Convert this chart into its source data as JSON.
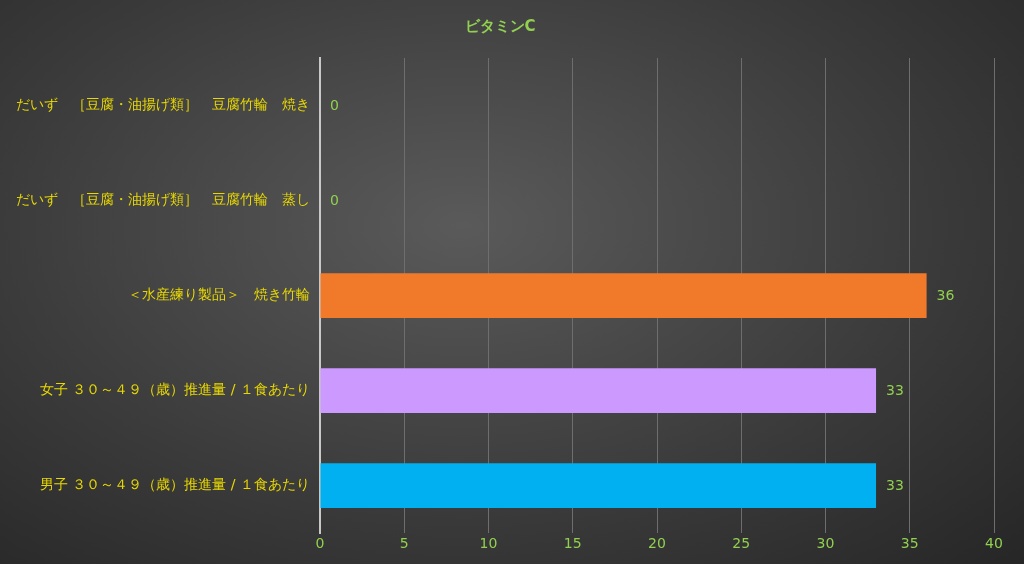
{
  "chart_data": {
    "type": "bar",
    "orientation": "horizontal",
    "title": "ビタミンC",
    "categories": [
      "だいず　［豆腐・油揚げ類］　豆腐竹輪　焼き",
      "だいず　［豆腐・油揚げ類］　豆腐竹輪　蒸し",
      "＜水産練り製品＞　焼き竹輪",
      "女子 ３０～４９（歳）推進量 / １食あたり",
      "男子 ３０～４９（歳）推進量 / １食あたり"
    ],
    "values": [
      0,
      0,
      36,
      33,
      33
    ],
    "colors": [
      "#f07a2a",
      "#f07a2a",
      "#f07a2a",
      "#cc99ff",
      "#00b0f0"
    ],
    "xlim": [
      0,
      40
    ],
    "xticks": [
      0,
      5,
      10,
      15,
      20,
      25,
      30,
      35,
      40
    ],
    "grid": "x",
    "data_labels": true,
    "legend": false
  }
}
